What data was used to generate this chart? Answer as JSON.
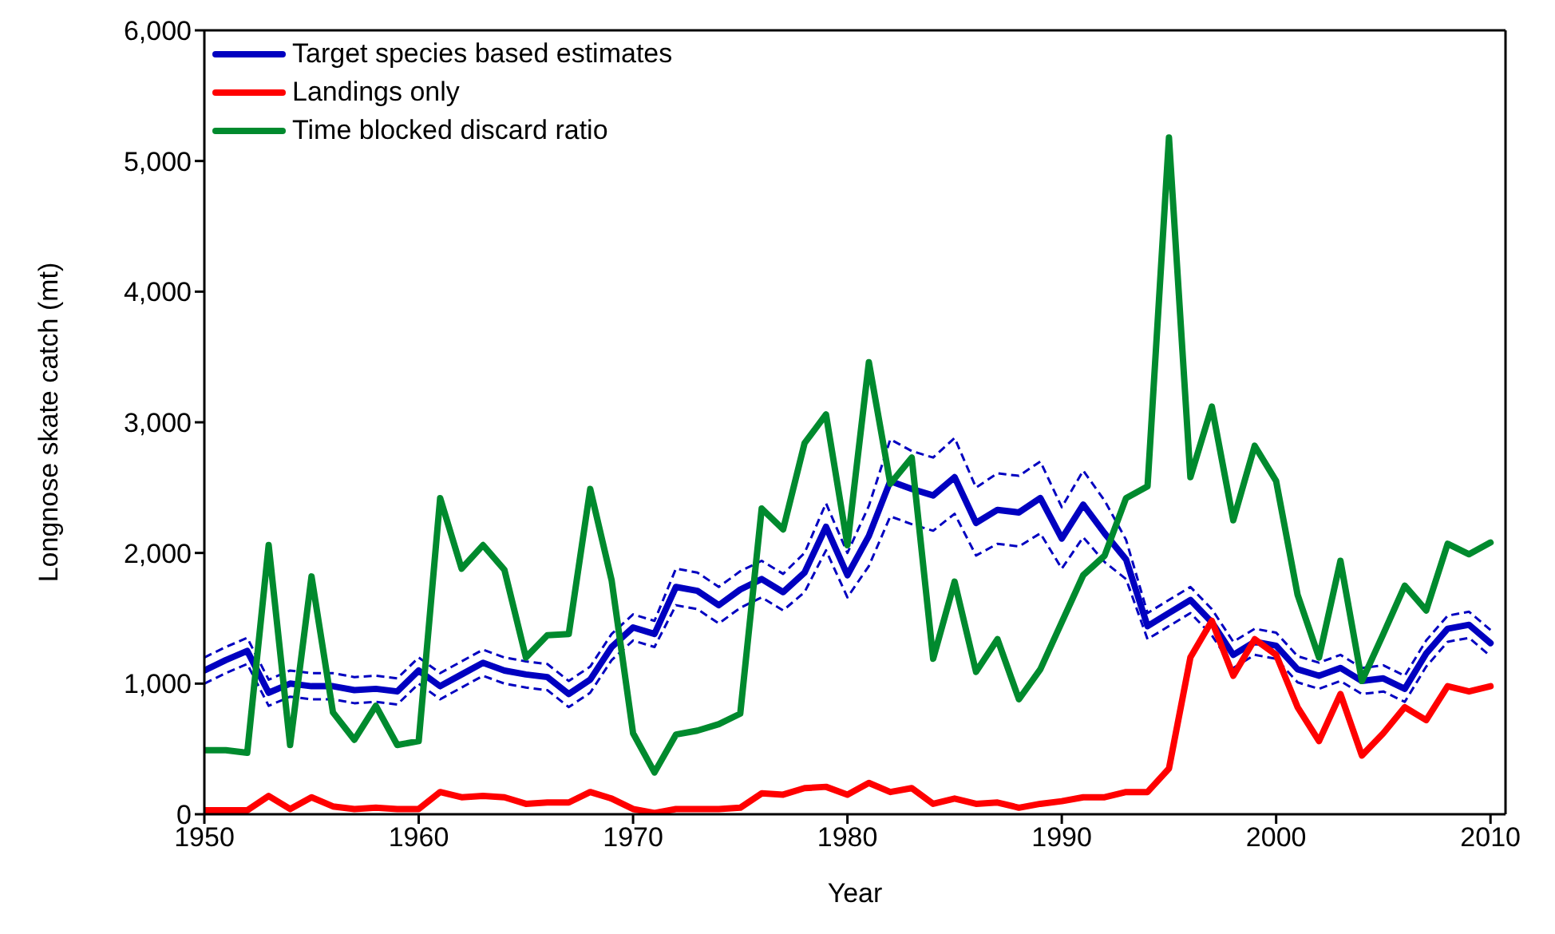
{
  "chart_data": {
    "type": "line",
    "xlabel": "Year",
    "ylabel": "Longnose skate catch (mt)",
    "x": [
      1950,
      1951,
      1952,
      1953,
      1954,
      1955,
      1956,
      1957,
      1958,
      1959,
      1960,
      1961,
      1962,
      1963,
      1964,
      1965,
      1966,
      1967,
      1968,
      1969,
      1970,
      1971,
      1972,
      1973,
      1974,
      1975,
      1976,
      1977,
      1978,
      1979,
      1980,
      1981,
      1982,
      1983,
      1984,
      1985,
      1986,
      1987,
      1988,
      1989,
      1990,
      1991,
      1992,
      1993,
      1994,
      1995,
      1996,
      1997,
      1998,
      1999,
      2000,
      2001,
      2002,
      2003,
      2004,
      2005,
      2006,
      2007,
      2008,
      2009,
      2010
    ],
    "series": [
      {
        "name": "Target species based estimates",
        "color": "#0000c0",
        "values": [
          1100,
          1180,
          1250,
          930,
          1000,
          980,
          980,
          950,
          960,
          940,
          1100,
          980,
          1070,
          1160,
          1100,
          1070,
          1050,
          920,
          1030,
          1280,
          1430,
          1380,
          1740,
          1710,
          1600,
          1720,
          1800,
          1700,
          1850,
          2200,
          1830,
          2130,
          2550,
          2490,
          2440,
          2580,
          2230,
          2330,
          2310,
          2420,
          2110,
          2370,
          2150,
          1950,
          1440,
          1540,
          1640,
          1470,
          1220,
          1320,
          1290,
          1110,
          1060,
          1120,
          1020,
          1040,
          960,
          1230,
          1420,
          1450,
          1310
        ]
      },
      {
        "color": "#0000c0",
        "line_style": "dashed",
        "values": [
          1000,
          1080,
          1150,
          830,
          900,
          880,
          880,
          850,
          860,
          840,
          1000,
          880,
          970,
          1060,
          1000,
          970,
          950,
          820,
          930,
          1180,
          1330,
          1280,
          1600,
          1570,
          1460,
          1580,
          1660,
          1560,
          1700,
          2020,
          1660,
          1900,
          2280,
          2220,
          2170,
          2300,
          1980,
          2070,
          2050,
          2150,
          1880,
          2120,
          1930,
          1800,
          1340,
          1440,
          1540,
          1370,
          1120,
          1220,
          1190,
          1010,
          960,
          1020,
          920,
          940,
          860,
          1130,
          1320,
          1350,
          1210
        ]
      },
      {
        "color": "#0000c0",
        "line_style": "dashed",
        "values": [
          1200,
          1280,
          1350,
          1030,
          1100,
          1080,
          1080,
          1050,
          1060,
          1040,
          1200,
          1080,
          1170,
          1260,
          1200,
          1170,
          1150,
          1020,
          1130,
          1380,
          1530,
          1480,
          1880,
          1850,
          1740,
          1860,
          1940,
          1840,
          2000,
          2380,
          2000,
          2360,
          2870,
          2780,
          2730,
          2880,
          2500,
          2610,
          2590,
          2700,
          2350,
          2630,
          2400,
          2100,
          1540,
          1640,
          1740,
          1570,
          1320,
          1420,
          1390,
          1210,
          1160,
          1220,
          1120,
          1140,
          1060,
          1330,
          1520,
          1550,
          1410
        ]
      },
      {
        "name": "Landings only",
        "color": "#ff0000",
        "values": [
          30,
          30,
          30,
          140,
          40,
          130,
          60,
          40,
          50,
          40,
          40,
          170,
          130,
          140,
          130,
          80,
          90,
          90,
          170,
          120,
          40,
          10,
          40,
          40,
          40,
          50,
          160,
          150,
          200,
          210,
          150,
          240,
          170,
          200,
          80,
          120,
          80,
          90,
          50,
          80,
          100,
          130,
          130,
          170,
          170,
          350,
          1200,
          1480,
          1060,
          1340,
          1220,
          820,
          560,
          920,
          450,
          620,
          820,
          720,
          980,
          940,
          980
        ]
      },
      {
        "name": "Time blocked discard ratio",
        "color": "#008a2e",
        "values": [
          490,
          490,
          470,
          2060,
          530,
          1820,
          780,
          570,
          830,
          530,
          560,
          2420,
          1880,
          2060,
          1870,
          1200,
          1370,
          1380,
          2490,
          1790,
          620,
          320,
          610,
          640,
          690,
          770,
          2340,
          2180,
          2840,
          3060,
          2060,
          3460,
          2530,
          2730,
          1190,
          1780,
          1090,
          1340,
          880,
          1110,
          1470,
          1830,
          1980,
          2420,
          2510,
          5180,
          2580,
          3120,
          2250,
          2820,
          2550,
          1680,
          1200,
          1940,
          1020,
          1380,
          1750,
          1560,
          2070,
          1990,
          2080
        ]
      }
    ],
    "xlim": [
      1950,
      2010.7
    ],
    "xticks": [
      1950,
      1960,
      1970,
      1980,
      1990,
      2000,
      2010
    ],
    "ylim": [
      0,
      6000
    ],
    "yticks": [
      0,
      {
        "value": 1000,
        "label": "1,000"
      },
      {
        "value": 2000,
        "label": "2,000"
      },
      {
        "value": 3000,
        "label": "3,000"
      },
      {
        "value": 4000,
        "label": "4,000"
      },
      {
        "value": 5000,
        "label": "5,000"
      },
      {
        "value": 6000,
        "label": "6,000"
      }
    ],
    "legend": "top left",
    "line_style": "solid",
    "marker": "none"
  }
}
